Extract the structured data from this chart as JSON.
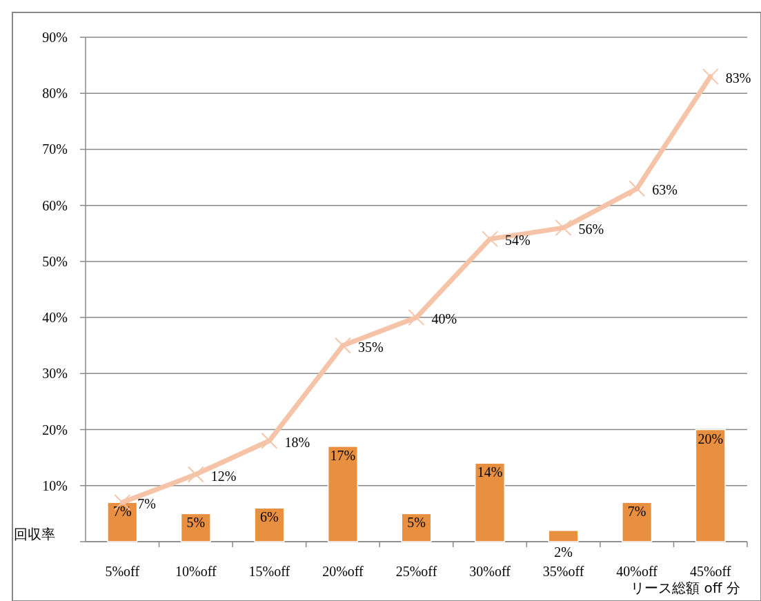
{
  "chart_data": {
    "type": "bar",
    "ylabel": "回収率",
    "xlabel": "リース総額 off 分",
    "categories": [
      "5%off",
      "10%off",
      "15%off",
      "20%off",
      "25%off",
      "30%off",
      "35%off",
      "40%off",
      "45%off"
    ],
    "series": [
      {
        "color": "#e8903f",
        "values": [
          7,
          5,
          6,
          17,
          5,
          14,
          2,
          7,
          20
        ],
        "value_labels": [
          "7%",
          "5%",
          "6%",
          "17%",
          "5%",
          "14%",
          "2%",
          "7%",
          "20%"
        ]
      },
      {
        "type": "line",
        "color": "#f5c4a8",
        "marker": "cross",
        "values": [
          7,
          12,
          18,
          35,
          40,
          54,
          56,
          63,
          83
        ],
        "value_labels": [
          "7%",
          "12%",
          "18%",
          "35%",
          "40%",
          "54%",
          "56%",
          "63%",
          "83%"
        ]
      }
    ],
    "ylim": [
      0,
      90
    ],
    "yticks": [
      {
        "value": 0,
        "label": null
      },
      {
        "value": 10,
        "label": "10%"
      },
      {
        "value": 20,
        "label": "20%"
      },
      {
        "value": 30,
        "label": "30%"
      },
      {
        "value": 40,
        "label": "40%"
      },
      {
        "value": 50,
        "label": "50%"
      },
      {
        "value": 60,
        "label": "60%"
      },
      {
        "value": 70,
        "label": "70%"
      },
      {
        "value": 80,
        "label": "80%"
      },
      {
        "value": 90,
        "label": "90%"
      }
    ],
    "grid": "y"
  }
}
